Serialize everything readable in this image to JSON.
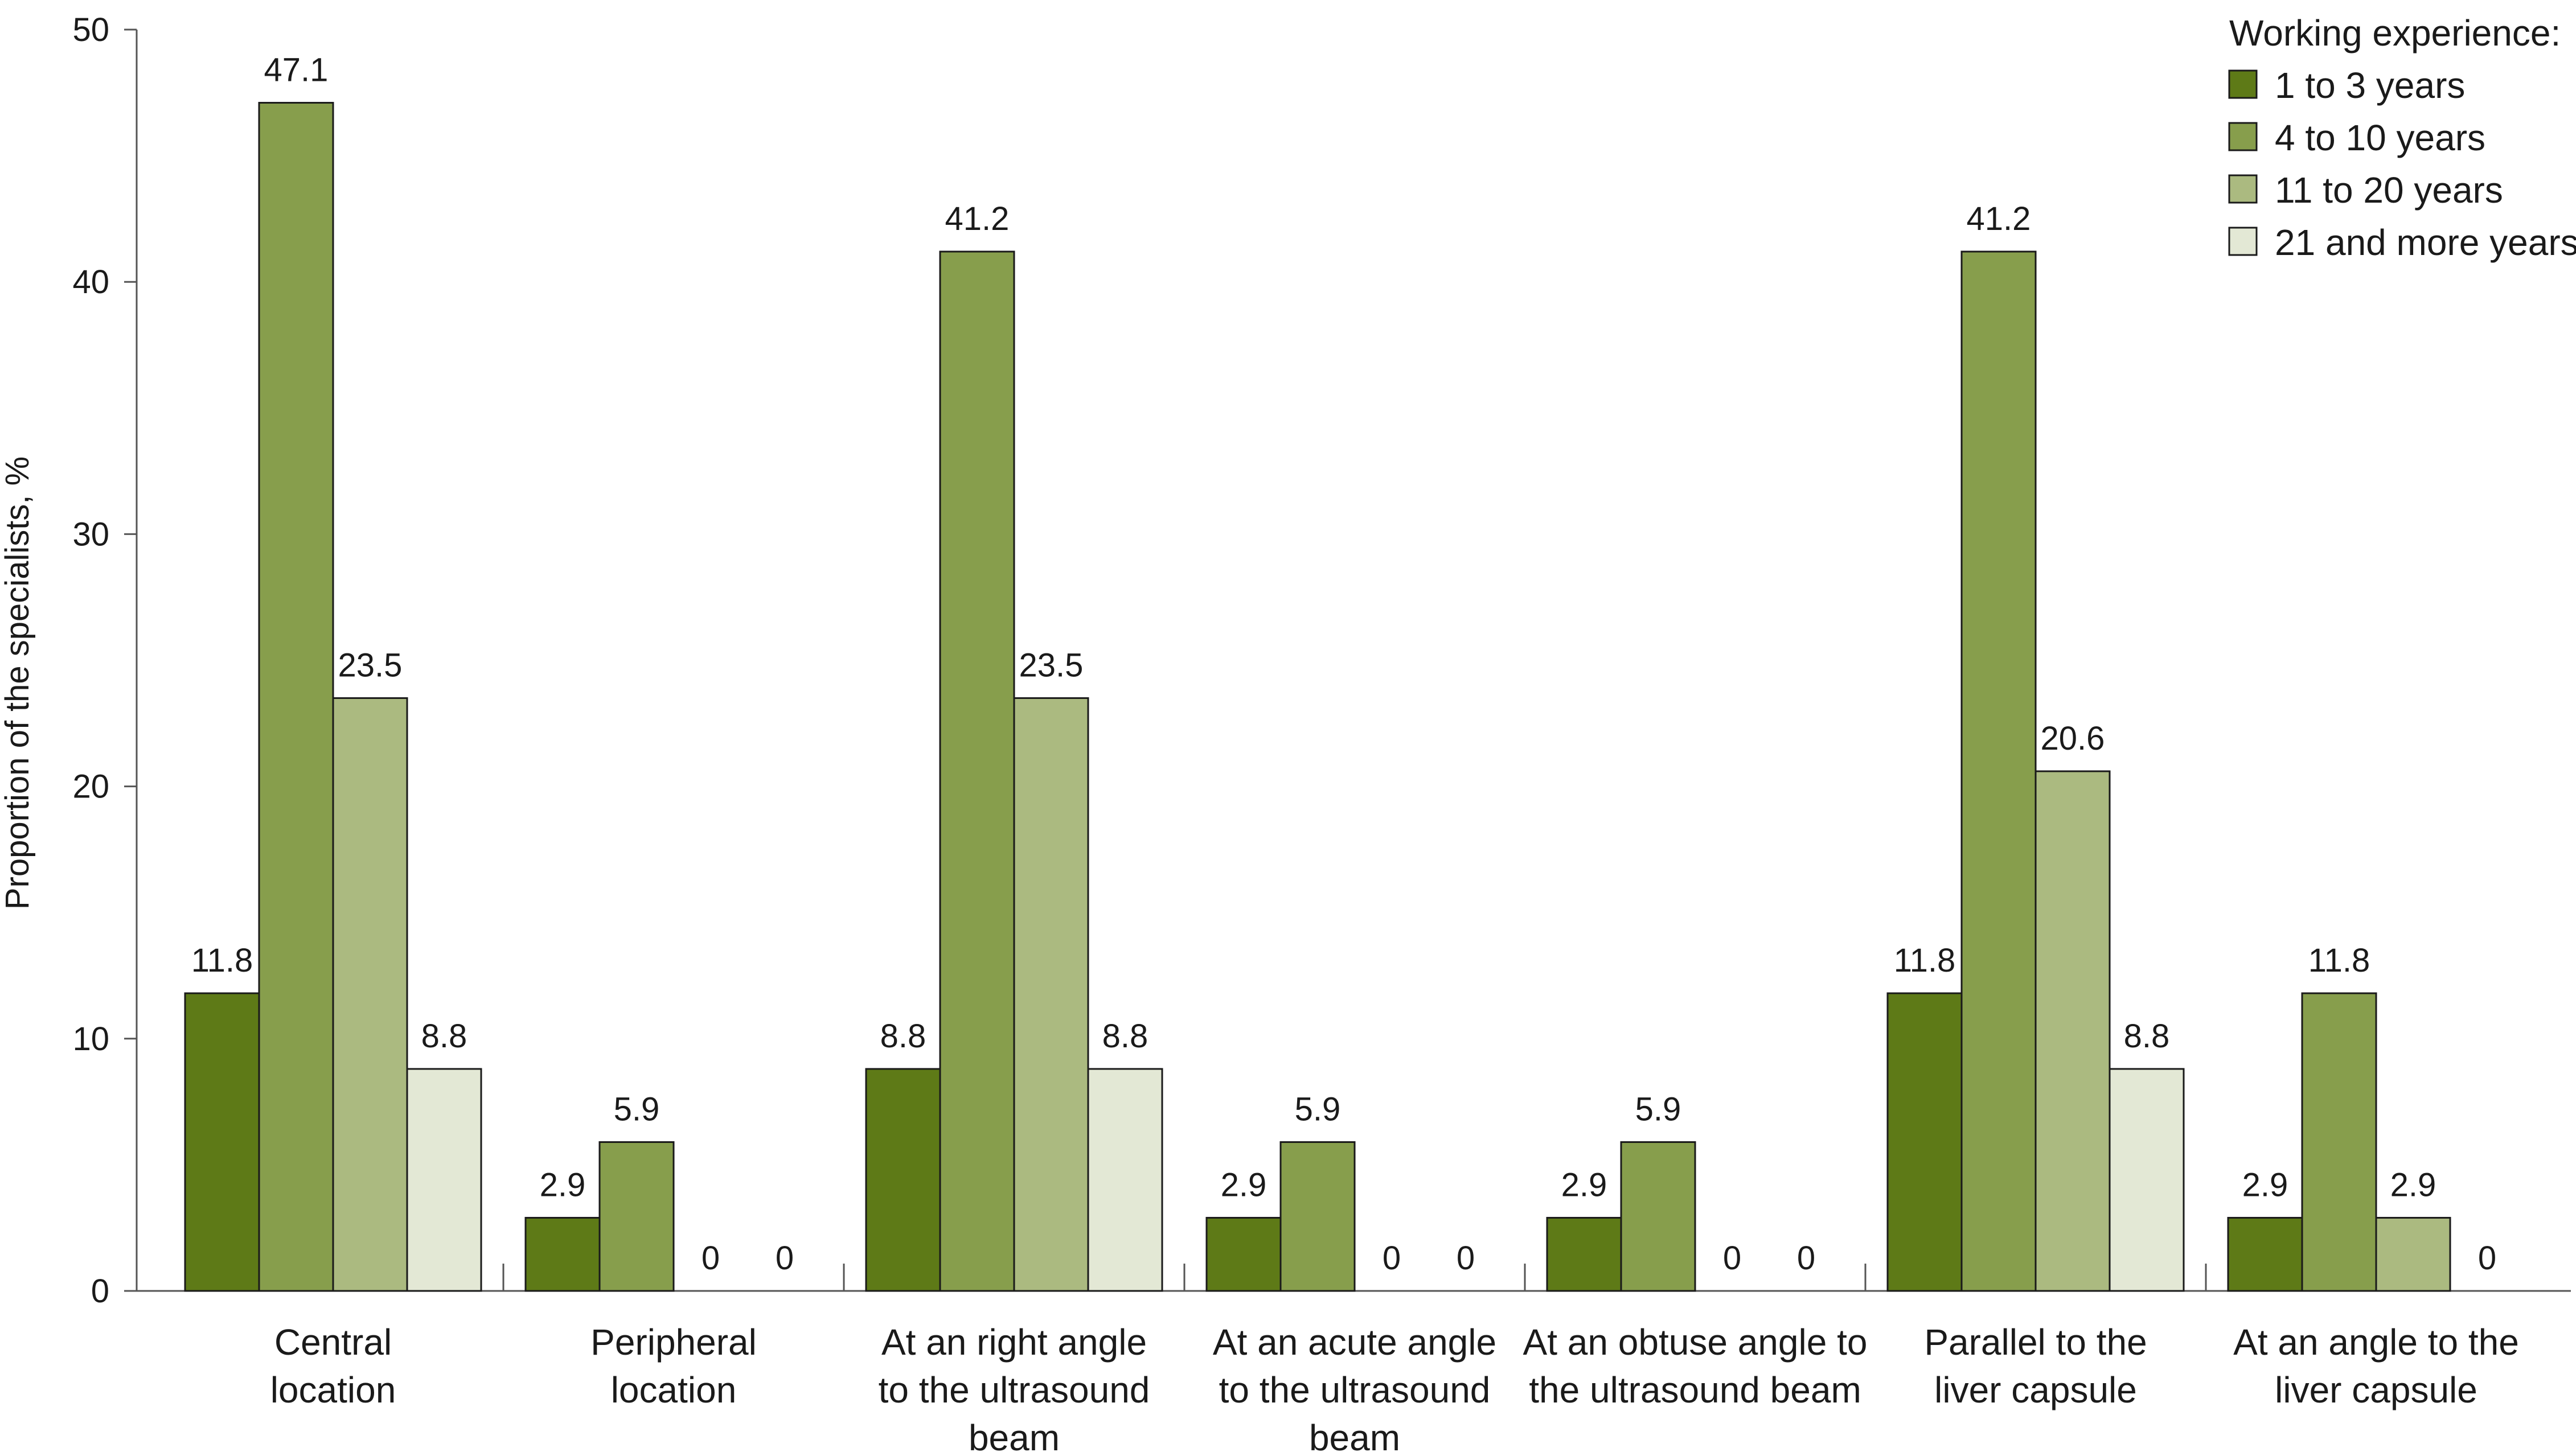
{
  "chart_data": {
    "type": "bar",
    "ylabel": "Proportion of the specialists, %",
    "xlabel": "",
    "ylim": [
      0,
      50
    ],
    "yticks": [
      0,
      10,
      20,
      30,
      40,
      50
    ],
    "grid": false,
    "legend_position": "top-right",
    "legend_title": "Working experience:",
    "categories": [
      [
        "Central",
        "location"
      ],
      [
        "Peripheral",
        "location"
      ],
      [
        "At an right angle",
        "to the ultrasound",
        "beam"
      ],
      [
        "At an acute angle",
        "to the ultrasound",
        "beam"
      ],
      [
        "At an obtuse angle to",
        "the ultrasound beam"
      ],
      [
        "Parallel to the",
        "liver capsule"
      ],
      [
        "At an angle to the",
        "liver capsule"
      ]
    ],
    "series": [
      {
        "name": "1 to 3 years",
        "color": "#5e7a17",
        "values": [
          11.8,
          2.9,
          8.8,
          2.9,
          2.9,
          11.8,
          2.9
        ]
      },
      {
        "name": "4 to 10 years",
        "color": "#879e4c",
        "values": [
          47.1,
          5.9,
          41.2,
          5.9,
          5.9,
          41.2,
          11.8
        ]
      },
      {
        "name": "11 to 20 years",
        "color": "#abba80",
        "values": [
          23.5,
          0,
          23.5,
          0,
          0,
          20.6,
          2.9
        ]
      },
      {
        "name": "21 and more years",
        "color": "#e3e8d5",
        "values": [
          8.8,
          0,
          8.8,
          0,
          0,
          8.8,
          0
        ]
      }
    ]
  }
}
